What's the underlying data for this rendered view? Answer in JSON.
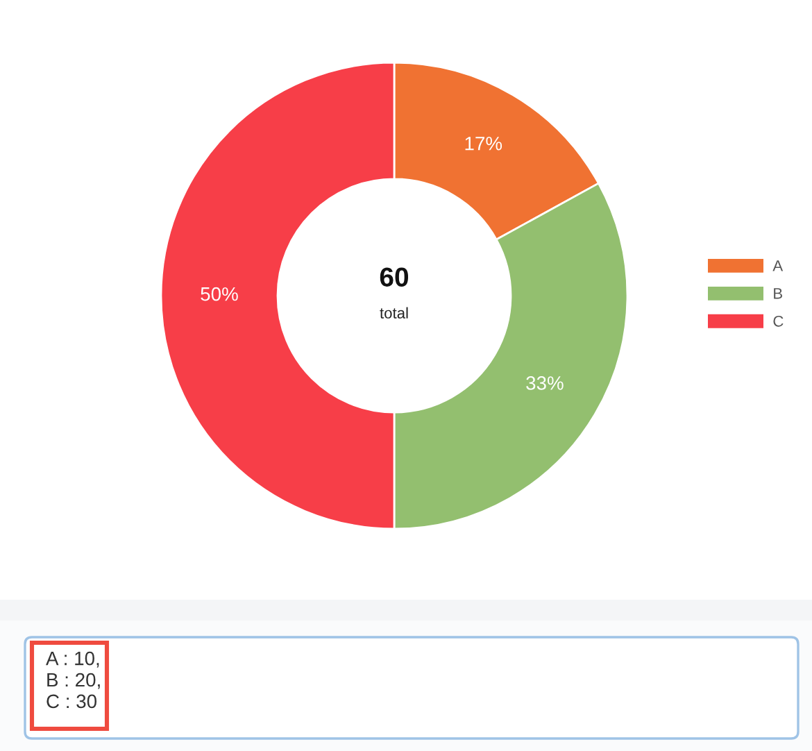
{
  "chart_data": {
    "type": "donut",
    "categories": [
      "A",
      "B",
      "C"
    ],
    "values": [
      17,
      33,
      50
    ],
    "colors": [
      "#f07232",
      "#93bf6f",
      "#f73e48"
    ],
    "value_labels": [
      "17%",
      "33%",
      "50%"
    ],
    "legend": "right",
    "annotations": [
      "60",
      "total",
      "A : 10,\nB : 20,\nC : 30"
    ]
  }
}
